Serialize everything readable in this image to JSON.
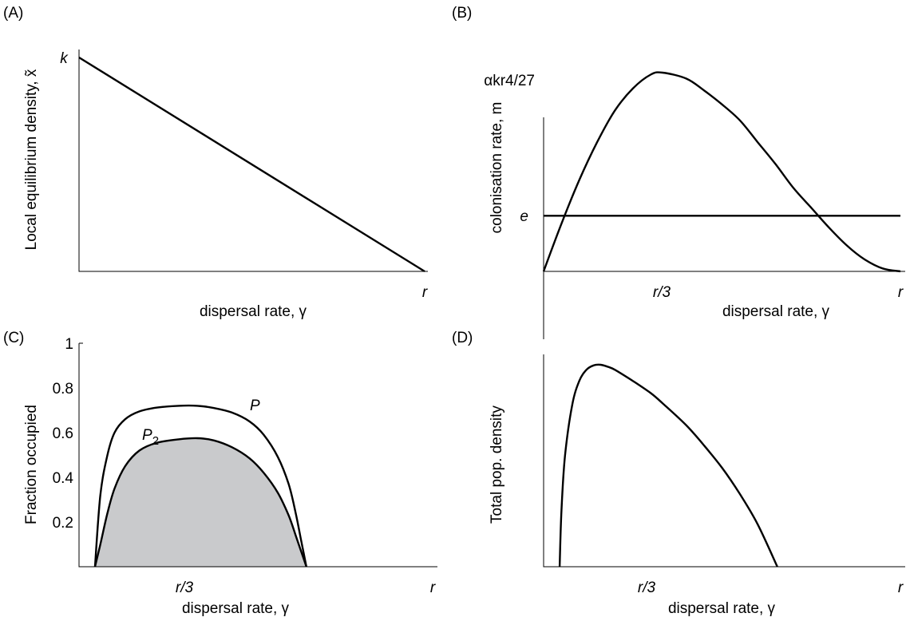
{
  "chart_data": [
    {
      "panel": "(A)",
      "type": "line",
      "xlabel": "dispersal rate, γ",
      "ylabel": "Local equilibrium density, x̃",
      "x_tick_labels": [
        "r"
      ],
      "y_tick_labels": [
        "k"
      ],
      "xlim": [
        0,
        1.0
      ],
      "ylim": [
        0,
        1.0
      ],
      "series": [
        {
          "x": [
            0,
            1.0
          ],
          "values": [
            1.0,
            0.0
          ]
        }
      ]
    },
    {
      "panel": "(B)",
      "type": "line",
      "xlabel": "dispersal rate, γ",
      "ylabel": "colonisation rate, m",
      "x_tick_labels": [
        "r/3",
        "r"
      ],
      "y_tick_labels": [
        "αkr4/27",
        "e"
      ],
      "xlim": [
        0,
        1.0
      ],
      "ylim": [
        0,
        1.0
      ],
      "series": [
        {
          "x": [
            0,
            0.05,
            0.1,
            0.15,
            0.2,
            0.25,
            0.3,
            0.333,
            0.4,
            0.45,
            0.5,
            0.55,
            0.6,
            0.65,
            0.7,
            0.75,
            0.8,
            0.85,
            0.9,
            0.95,
            1.0
          ],
          "values": [
            0,
            0.24,
            0.46,
            0.65,
            0.81,
            0.92,
            0.99,
            1.0,
            0.97,
            0.91,
            0.84,
            0.76,
            0.65,
            0.54,
            0.42,
            0.32,
            0.22,
            0.13,
            0.06,
            0.015,
            0
          ]
        },
        {
          "x": [
            0,
            1.0
          ],
          "values": [
            0.28,
            0.28
          ]
        }
      ]
    },
    {
      "panel": "(C)",
      "type": "area",
      "xlabel": "dispersal rate, γ",
      "ylabel": "Fraction occupied",
      "x_tick_labels": [
        "r/3",
        "r"
      ],
      "y_ticks": [
        0.2,
        0.4,
        0.6,
        0.8,
        1
      ],
      "xlim": [
        0,
        1.0
      ],
      "ylim": [
        0,
        1.0
      ],
      "series": [
        {
          "name": "P",
          "x": [
            0.045,
            0.06,
            0.08,
            0.1,
            0.13,
            0.17,
            0.22,
            0.28,
            0.333,
            0.38,
            0.43,
            0.48,
            0.52,
            0.56,
            0.59,
            0.61,
            0.625,
            0.64
          ],
          "values": [
            0,
            0.32,
            0.5,
            0.6,
            0.66,
            0.695,
            0.712,
            0.72,
            0.72,
            0.71,
            0.69,
            0.65,
            0.59,
            0.49,
            0.37,
            0.24,
            0.12,
            0
          ]
        },
        {
          "name": "P2",
          "x": [
            0.045,
            0.06,
            0.08,
            0.1,
            0.13,
            0.17,
            0.22,
            0.28,
            0.333,
            0.38,
            0.43,
            0.48,
            0.52,
            0.56,
            0.59,
            0.61,
            0.625,
            0.64
          ],
          "values": [
            0,
            0.1,
            0.24,
            0.35,
            0.45,
            0.52,
            0.555,
            0.57,
            0.575,
            0.565,
            0.535,
            0.485,
            0.42,
            0.33,
            0.23,
            0.14,
            0.07,
            0
          ]
        }
      ]
    },
    {
      "panel": "(D)",
      "type": "line",
      "xlabel": "dispersal rate, γ",
      "ylabel": "Total pop. density",
      "x_tick_labels": [
        "r/3",
        "r"
      ],
      "xlim": [
        0,
        1.0
      ],
      "ylim": [
        0,
        1.0
      ],
      "series": [
        {
          "x": [
            0.045,
            0.05,
            0.06,
            0.08,
            0.1,
            0.12,
            0.14,
            0.16,
            0.18,
            0.2,
            0.25,
            0.3,
            0.333,
            0.4,
            0.45,
            0.5,
            0.55,
            0.6,
            0.655
          ],
          "values": [
            0,
            0.28,
            0.55,
            0.8,
            0.92,
            0.975,
            0.997,
            1.0,
            0.99,
            0.975,
            0.92,
            0.86,
            0.81,
            0.7,
            0.6,
            0.49,
            0.36,
            0.21,
            0
          ]
        }
      ]
    }
  ]
}
